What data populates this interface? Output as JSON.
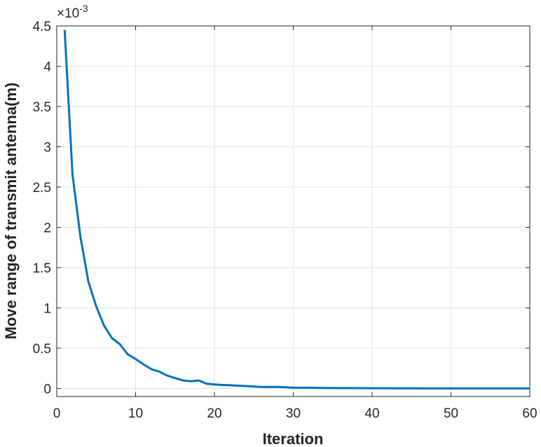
{
  "chart_data": {
    "type": "line",
    "xlabel": "Iteration",
    "ylabel": "Move range of transmit antenna(m)",
    "y_exponent": {
      "base": "×10",
      "power": "-3"
    },
    "x": [
      1,
      2,
      3,
      4,
      5,
      6,
      7,
      8,
      9,
      10,
      11,
      12,
      13,
      14,
      15,
      16,
      17,
      18,
      19,
      20,
      21,
      22,
      23,
      24,
      25,
      26,
      27,
      28,
      29,
      30,
      31,
      32,
      33,
      34,
      35,
      36,
      37,
      38,
      39,
      40,
      41,
      42,
      43,
      44,
      45,
      46,
      47,
      48,
      49,
      50,
      51,
      52,
      53,
      54,
      55,
      56,
      57,
      58,
      59,
      60
    ],
    "series": [
      {
        "color": "#0072bd",
        "values": [
          4.45,
          2.65,
          1.885,
          1.33,
          1.02,
          0.78,
          0.625,
          0.55,
          0.425,
          0.365,
          0.3,
          0.24,
          0.21,
          0.16,
          0.13,
          0.1,
          0.09,
          0.1,
          0.06,
          0.05,
          0.045,
          0.04,
          0.035,
          0.03,
          0.025,
          0.02,
          0.02,
          0.02,
          0.015,
          0.01,
          0.01,
          0.01,
          0.008,
          0.006,
          0.005,
          0.005,
          0.005,
          0.004,
          0.004,
          0.003,
          0.003,
          0.003,
          0.002,
          0.002,
          0.002,
          0.002,
          0.001,
          0.001,
          0.001,
          0.001,
          0.001,
          0.001,
          0.001,
          0.001,
          0.001,
          0.001,
          0.001,
          0.001,
          0.001,
          0.001
        ]
      }
    ],
    "xlim": [
      0,
      60
    ],
    "xticks": [
      0,
      10,
      20,
      30,
      40,
      50,
      60
    ],
    "ylim": [
      -0.1,
      4.5
    ],
    "yticks": [
      0,
      0.5,
      1,
      1.5,
      2,
      2.5,
      3,
      3.5,
      4,
      4.5
    ],
    "grid": true
  }
}
